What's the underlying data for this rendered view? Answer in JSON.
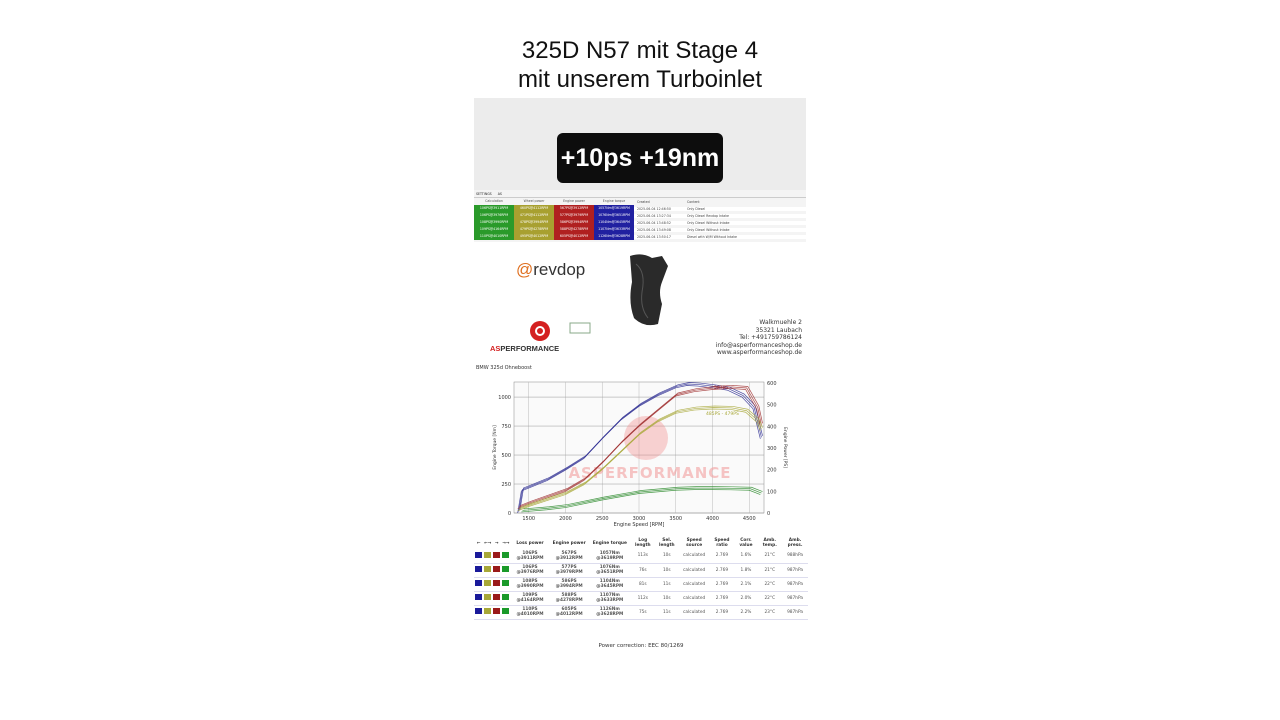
{
  "title": {
    "line1": "325D N57 mit Stage 4",
    "line2": "mit unserem Turboinlet"
  },
  "badge": "+10ps +19nm",
  "dyno_list": {
    "tabs": [
      "SETTINGS",
      "AS"
    ],
    "headers": [
      "Calculation",
      "Wheel power",
      "Engine power",
      "Engine torque",
      "Created",
      "Content"
    ],
    "rows": [
      {
        "loss": "106PS@3911RPM",
        "wheel": "460PS@4112RPM",
        "engine": "567PS@3912RPM",
        "torque": "1057Nm@3619RPM",
        "created": "2025-06-04 12:46:50",
        "content": "Only Diesel"
      },
      {
        "loss": "106PS@3976RPM",
        "wheel": "471PS@4112RPM",
        "engine": "577PS@3979RPM",
        "torque": "1076Nm@3651RPM",
        "created": "2025-06-04 13:27:34",
        "content": "Only Diesel Revdop Intake"
      },
      {
        "loss": "108PS@3990RPM",
        "wheel": "478PS@3994RPM",
        "engine": "586PS@3994RPM",
        "torque": "1104Nm@3645RPM",
        "created": "2025-06-04 13:48:52",
        "content": "Only Diesel Without Intake"
      },
      {
        "loss": "109PS@4164RPM",
        "wheel": "479PS@4278RPM",
        "engine": "588PS@4278RPM",
        "torque": "1107Nm@3633RPM",
        "created": "2025-06-04 13:49:08",
        "content": "Only Diesel Without Intake"
      },
      {
        "loss": "110PS@4010RPM",
        "wheel": "495PS@4012RPM",
        "engine": "605PS@4012RPM",
        "torque": "1126Nm@3628RPM",
        "created": "2025-06-04 13:50:17",
        "content": "Diesel with W/M Without Intake"
      }
    ]
  },
  "revdop": {
    "at": "@",
    "name": "revdop"
  },
  "company": {
    "name": "ASPERFORMANCE",
    "address": [
      "Walkmuehle 2",
      "35321 Laubach",
      "Tel: +491759786124",
      "info@asperformanceshop.de",
      "www.asperformanceshop.de"
    ]
  },
  "chart_data": {
    "type": "line",
    "title": "BMW 325d Ohneboost",
    "xlabel": "Engine Speed [RPM]",
    "ylabel": "Engine Torque [Nm]",
    "y2label": "Engine Power [PS]",
    "xlim": [
      1300,
      4700
    ],
    "ylim": [
      0,
      1130
    ],
    "y2lim": [
      0,
      600
    ],
    "xticks": [
      1500,
      2000,
      2500,
      3000,
      3500,
      4000,
      4500
    ],
    "yticks": [
      0,
      250,
      500,
      750,
      1000
    ],
    "y2ticks": [
      0,
      100,
      200,
      300,
      400,
      500,
      600
    ],
    "grid": true,
    "colors": {
      "torque": "#2a2a90",
      "engine_power": "#a03030",
      "wheel_power": "#a8a838",
      "loss_power": "#2a8a2a"
    },
    "annotations": [
      "485PS - 479PS",
      "587PS"
    ],
    "watermark": "ASPERFORMANCE",
    "series": [
      {
        "axis": "left",
        "color": "#2a2a90",
        "x": [
          1350,
          1400,
          1500,
          1750,
          2000,
          2250,
          2500,
          2750,
          3000,
          3250,
          3500,
          3650,
          3800,
          4000,
          4200,
          4400,
          4550,
          4650
        ],
        "y": [
          0,
          190,
          215,
          280,
          370,
          470,
          640,
          800,
          920,
          1010,
          1080,
          1100,
          1095,
          1080,
          1060,
          1000,
          900,
          640
        ]
      },
      {
        "axis": "right",
        "color": "#a03030",
        "x": [
          1350,
          1500,
          2000,
          2250,
          2500,
          2750,
          3000,
          3250,
          3500,
          3750,
          4000,
          4250,
          4450,
          4600,
          4650
        ],
        "y": [
          20,
          40,
          100,
          150,
          230,
          320,
          400,
          470,
          540,
          560,
          570,
          575,
          570,
          480,
          400
        ]
      },
      {
        "axis": "right",
        "color": "#a8a838",
        "x": [
          1350,
          1500,
          2000,
          2250,
          2500,
          2750,
          3000,
          3250,
          3500,
          3750,
          4000,
          4250,
          4450,
          4600,
          4650
        ],
        "y": [
          10,
          30,
          85,
          130,
          200,
          280,
          360,
          420,
          460,
          475,
          480,
          478,
          465,
          420,
          380
        ]
      },
      {
        "axis": "right",
        "color": "#2a8a2a",
        "x": [
          1400,
          1750,
          2000,
          2500,
          3000,
          3500,
          3750,
          4000,
          4250,
          4500,
          4650
        ],
        "y": [
          5,
          15,
          25,
          60,
          90,
          105,
          108,
          108,
          107,
          105,
          85
        ]
      }
    ]
  },
  "results": {
    "headers": [
      "←",
      "←→",
      "→",
      "→→",
      "Loss power",
      "Engine power",
      "Engine torque",
      "Log length",
      "Sel. length",
      "Speed source",
      "Speed ratio",
      "Corr. value",
      "Amb. temp.",
      "Amb. press."
    ],
    "swatches": [
      "#1a1a9a",
      "#a8a838",
      "#9a1a1a",
      "#1a9a2a"
    ],
    "rows": [
      {
        "loss": "106PS @3911RPM",
        "power": "567PS @3912RPM",
        "torque": "1057Nm @3619RPM",
        "log": "113s",
        "sel": "10s",
        "src": "calculated",
        "ratio": "2.769",
        "corr": "1.6%",
        "temp": "21°C",
        "press": "988hPa"
      },
      {
        "loss": "106PS @3976RPM",
        "power": "577PS @3979RPM",
        "torque": "1076Nm @3651RPM",
        "log": "76s",
        "sel": "10s",
        "src": "calculated",
        "ratio": "2.769",
        "corr": "1.8%",
        "temp": "21°C",
        "press": "987hPa"
      },
      {
        "loss": "108PS @3990RPM",
        "power": "586PS @3994RPM",
        "torque": "1104Nm @3645RPM",
        "log": "81s",
        "sel": "11s",
        "src": "calculated",
        "ratio": "2.769",
        "corr": "2.1%",
        "temp": "22°C",
        "press": "987hPa"
      },
      {
        "loss": "109PS @4164RPM",
        "power": "588PS @4278RPM",
        "torque": "1107Nm @3633RPM",
        "log": "112s",
        "sel": "10s",
        "src": "calculated",
        "ratio": "2.769",
        "corr": "2.0%",
        "temp": "22°C",
        "press": "987hPa"
      },
      {
        "loss": "110PS @4010RPM",
        "power": "605PS @4012RPM",
        "torque": "1126Nm @3628RPM",
        "log": "75s",
        "sel": "11s",
        "src": "calculated",
        "ratio": "2.769",
        "corr": "2.2%",
        "temp": "23°C",
        "press": "987hPa"
      }
    ],
    "correction": "Power correction: EEC 80/1269"
  }
}
